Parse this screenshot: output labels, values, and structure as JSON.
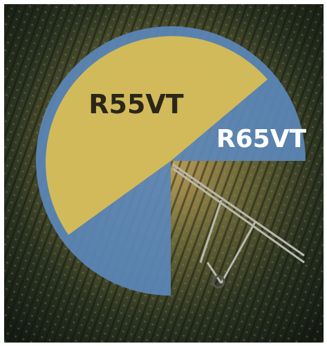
{
  "labels": [
    "R55VT",
    "R65VT"
  ]
}
